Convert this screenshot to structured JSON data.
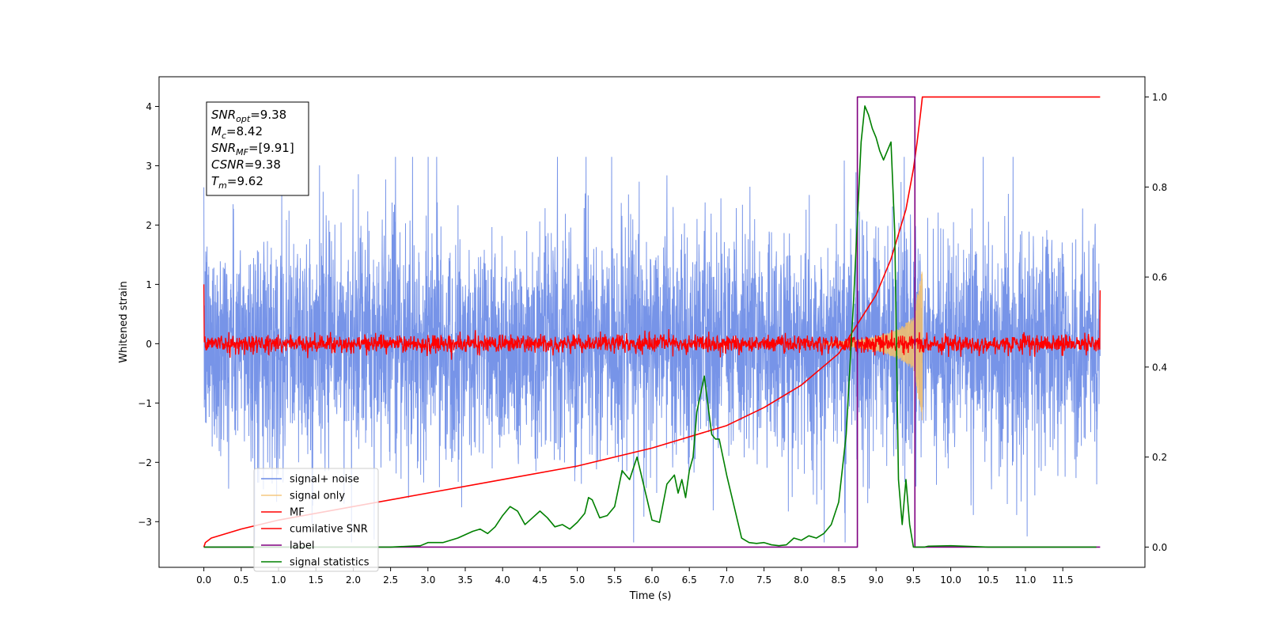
{
  "chart_data": {
    "type": "line",
    "xlabel": "Time (s)",
    "ylabel": "Whitened strain",
    "ylabel_right": "",
    "x_ticks": [
      "0.0",
      "0.5",
      "1.0",
      "1.5",
      "2.0",
      "2.5",
      "3.0",
      "3.5",
      "4.0",
      "4.5",
      "5.0",
      "5.5",
      "6.0",
      "6.5",
      "7.0",
      "7.5",
      "8.0",
      "8.5",
      "9.0",
      "9.5",
      "10.0",
      "10.5",
      "11.0",
      "11.5"
    ],
    "y_ticks": [
      "−3",
      "−2",
      "−1",
      "0",
      "1",
      "2",
      "3",
      "4"
    ],
    "y2_ticks": [
      "0.0",
      "0.2",
      "0.4",
      "0.6",
      "0.8",
      "1.0"
    ],
    "xlim": [
      -0.6,
      12.6
    ],
    "ylim": [
      -3.77,
      4.5
    ],
    "y2lim": [
      -0.045,
      1.045
    ],
    "grid": false,
    "legend_position": "lower-left",
    "annotation": [
      {
        "label": "SNR",
        "sub": "opt",
        "value": "=9.38"
      },
      {
        "label": "M",
        "sub": "c",
        "value": "=8.42"
      },
      {
        "label": "SNR",
        "sub": "MF",
        "value": "=[9.91]"
      },
      {
        "label": "CSNR",
        "sub": "",
        "value": "=9.38"
      },
      {
        "label": "T",
        "sub": "m",
        "value": "=9.62"
      }
    ],
    "series": [
      {
        "name": "signal+ noise",
        "axis": "left",
        "color": "#6b8be6",
        "style": "noise band, amplitude ~1 (peaks to ~3)",
        "x_range": [
          0.0,
          12.0
        ]
      },
      {
        "name": "signal only",
        "axis": "left",
        "color": "#f5c06a",
        "style": "chirp envelope growing from ~8.3 s to ~9.6 s",
        "envelope_x": [
          8.3,
          8.6,
          8.9,
          9.1,
          9.3,
          9.5,
          9.62
        ],
        "envelope_y": [
          0.02,
          0.05,
          0.1,
          0.16,
          0.26,
          0.45,
          1.35
        ]
      },
      {
        "name": "MF",
        "axis": "left",
        "color": "#ff0000",
        "style": "noise band, amplitude ~0.1",
        "x_range": [
          0.0,
          12.0
        ],
        "edge_values": [
          1.0,
          0.9
        ]
      },
      {
        "name": "cumilative SNR",
        "axis": "right",
        "color": "#ff0000",
        "x": [
          0.0,
          0.02,
          0.1,
          0.5,
          1.0,
          2.0,
          3.0,
          4.0,
          5.0,
          6.0,
          7.0,
          7.5,
          8.0,
          8.5,
          9.0,
          9.2,
          9.4,
          9.5,
          9.55,
          9.6,
          9.62,
          12.0
        ],
        "y": [
          0.0,
          0.01,
          0.02,
          0.04,
          0.06,
          0.09,
          0.12,
          0.15,
          0.18,
          0.22,
          0.27,
          0.31,
          0.36,
          0.43,
          0.56,
          0.64,
          0.75,
          0.84,
          0.9,
          0.97,
          1.0,
          1.0
        ]
      },
      {
        "name": "label",
        "axis": "right",
        "color": "#800080",
        "x": [
          0.0,
          8.75,
          8.75,
          9.52,
          9.52,
          12.0
        ],
        "y": [
          0.0,
          0.0,
          1.0,
          1.0,
          0.0,
          0.0
        ]
      },
      {
        "name": "signal statistics",
        "axis": "right",
        "color": "#008000",
        "x": [
          0.0,
          0.5,
          1.0,
          1.5,
          2.0,
          2.5,
          2.9,
          3.0,
          3.2,
          3.4,
          3.6,
          3.7,
          3.8,
          3.9,
          4.0,
          4.1,
          4.2,
          4.3,
          4.4,
          4.5,
          4.6,
          4.7,
          4.8,
          4.9,
          5.0,
          5.1,
          5.15,
          5.2,
          5.3,
          5.4,
          5.5,
          5.6,
          5.7,
          5.8,
          5.9,
          6.0,
          6.1,
          6.2,
          6.3,
          6.35,
          6.4,
          6.45,
          6.5,
          6.55,
          6.6,
          6.7,
          6.8,
          6.85,
          6.9,
          6.95,
          7.0,
          7.1,
          7.2,
          7.3,
          7.4,
          7.5,
          7.6,
          7.7,
          7.8,
          7.9,
          8.0,
          8.1,
          8.2,
          8.3,
          8.4,
          8.5,
          8.6,
          8.7,
          8.8,
          8.85,
          8.9,
          8.95,
          9.0,
          9.05,
          9.1,
          9.2,
          9.25,
          9.3,
          9.35,
          9.4,
          9.45,
          9.5,
          9.55,
          9.6,
          9.65,
          9.7,
          10.0,
          10.5,
          11.0,
          11.5,
          11.95
        ],
        "y": [
          0.0,
          0.0,
          0.0,
          0.0,
          0.0,
          0.0,
          0.003,
          0.01,
          0.01,
          0.02,
          0.035,
          0.04,
          0.03,
          0.045,
          0.07,
          0.09,
          0.08,
          0.05,
          0.065,
          0.08,
          0.065,
          0.045,
          0.05,
          0.04,
          0.055,
          0.075,
          0.11,
          0.105,
          0.065,
          0.07,
          0.09,
          0.17,
          0.15,
          0.2,
          0.13,
          0.06,
          0.055,
          0.14,
          0.16,
          0.12,
          0.15,
          0.11,
          0.17,
          0.2,
          0.3,
          0.38,
          0.25,
          0.24,
          0.24,
          0.2,
          0.16,
          0.09,
          0.02,
          0.01,
          0.008,
          0.01,
          0.005,
          0.003,
          0.005,
          0.02,
          0.015,
          0.025,
          0.02,
          0.03,
          0.05,
          0.1,
          0.25,
          0.55,
          0.9,
          0.98,
          0.96,
          0.93,
          0.91,
          0.88,
          0.86,
          0.9,
          0.7,
          0.15,
          0.05,
          0.15,
          0.05,
          0.0,
          0.0,
          0.0,
          0.0,
          0.002,
          0.003,
          0.0,
          0.0,
          0.0,
          0.0
        ]
      }
    ]
  }
}
